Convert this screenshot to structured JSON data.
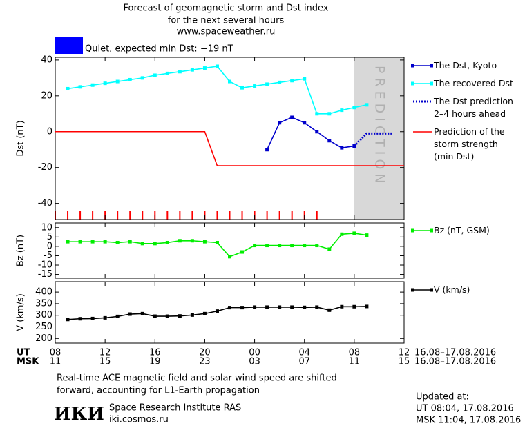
{
  "header": {
    "title_lines": [
      "Forecast of geomagnetic storm and Dst index",
      "for the next several hours",
      "www.spaceweather.ru"
    ],
    "status": "Quiet, expected min Dst: −19 nT",
    "status_color": "#0000ff"
  },
  "chart_data": [
    {
      "type": "line",
      "y_label": "Dst (nT)",
      "xlim": [
        0,
        28
      ],
      "ylim": [
        -49,
        41.5
      ],
      "yticks": [
        -40,
        -20,
        0,
        20,
        40
      ],
      "prediction_label": "PREDICTION",
      "prediction_start": 24,
      "series": [
        {
          "name": "The Dst, Kyoto",
          "color": "#0000cc",
          "marker": true,
          "x": [
            17,
            18,
            19,
            20,
            21,
            22,
            23,
            24
          ],
          "values": [
            -10,
            5,
            8,
            5,
            0,
            -5,
            -9,
            -8
          ]
        },
        {
          "name": "The recovered Dst",
          "color": "#00ffff",
          "marker": true,
          "x": [
            1,
            2,
            3,
            4,
            5,
            6,
            7,
            8,
            9,
            10,
            11,
            12,
            13,
            14,
            15,
            16,
            17,
            18,
            19,
            20,
            21,
            22,
            23,
            24,
            25
          ],
          "values": [
            24,
            25,
            26,
            27,
            28,
            29,
            30,
            31.5,
            32.5,
            33.5,
            34.5,
            35.5,
            36.5,
            28,
            24.5,
            25.5,
            26.5,
            27.5,
            28.5,
            29.5,
            10,
            10,
            12,
            13.5,
            15
          ]
        },
        {
          "name": "The Dst prediction\n2–4 hours ahead",
          "color": "#0000cc",
          "marker": false,
          "dotted": true,
          "x": [
            24,
            25,
            26,
            27
          ],
          "values": [
            -8,
            -1,
            -1,
            -1
          ]
        },
        {
          "name": "Prediction of the\nstorm strength\n(min Dst)",
          "color": "#ff0000",
          "marker": false,
          "x": [
            0,
            12,
            13,
            28
          ],
          "values": [
            0,
            0,
            -19,
            -19
          ]
        }
      ]
    },
    {
      "type": "line",
      "y_label": "Bz (nT)",
      "xlim": [
        0,
        28
      ],
      "ylim": [
        -17,
        12.5
      ],
      "yticks": [
        -15,
        -10,
        -5,
        0,
        5,
        10
      ],
      "series": [
        {
          "name": "Bz (nT, GSM)",
          "color": "#00ee00",
          "marker": true,
          "x": [
            1,
            2,
            3,
            4,
            5,
            6,
            7,
            8,
            9,
            10,
            11,
            12,
            13,
            14,
            15,
            16,
            17,
            18,
            19,
            20,
            21,
            22,
            23,
            24,
            25
          ],
          "values": [
            2.5,
            2.5,
            2.5,
            2.5,
            2,
            2.5,
            1.5,
            1.5,
            2,
            3,
            3,
            2.5,
            2,
            -5.5,
            -3,
            0.5,
            0.5,
            0.5,
            0.5,
            0.5,
            0.5,
            -1.5,
            6.5,
            7,
            6
          ]
        }
      ]
    },
    {
      "type": "line",
      "y_label": "V (km/s)",
      "xlim": [
        0,
        28
      ],
      "ylim": [
        180,
        445
      ],
      "yticks": [
        200,
        250,
        300,
        350,
        400
      ],
      "series": [
        {
          "name": "V (km/s)",
          "color": "#000000",
          "marker": true,
          "x": [
            1,
            2,
            3,
            4,
            5,
            6,
            7,
            8,
            9,
            10,
            11,
            12,
            13,
            14,
            15,
            16,
            17,
            18,
            19,
            20,
            21,
            22,
            23,
            24,
            25
          ],
          "values": [
            282,
            285,
            286,
            289,
            295,
            305,
            307,
            296,
            296,
            297,
            301,
            307,
            318,
            333,
            333,
            335,
            335,
            335,
            335,
            334,
            335,
            322,
            337,
            337,
            338
          ]
        }
      ],
      "x_row_label": "UT",
      "xticks": [
        {
          "value": 0,
          "label": "08"
        },
        {
          "value": 4,
          "label": "12"
        },
        {
          "value": 8,
          "label": "16"
        },
        {
          "value": 12,
          "label": "20"
        },
        {
          "value": 16,
          "label": "00"
        },
        {
          "value": 20,
          "label": "04"
        },
        {
          "value": 24,
          "label": "08"
        },
        {
          "value": 28,
          "label": "12"
        }
      ],
      "x_row2_label": "MSK",
      "xticks2": [
        {
          "value": 0,
          "label": "11"
        },
        {
          "value": 4,
          "label": "15"
        },
        {
          "value": 8,
          "label": "19"
        },
        {
          "value": 12,
          "label": "23"
        },
        {
          "value": 16,
          "label": "03"
        },
        {
          "value": 20,
          "label": "07"
        },
        {
          "value": 24,
          "label": "11"
        },
        {
          "value": 28,
          "label": "15"
        }
      ],
      "date_range": "16.08–17.08.2016"
    }
  ],
  "footer": {
    "note_lines": [
      "Real-time ACE magnetic field and solar wind speed are shifted",
      "forward, accounting for L1-Earth propagation"
    ],
    "logo": "ИКИ",
    "institute": "Space Research Institute RAS",
    "site": "iki.cosmos.ru",
    "updated_lines": [
      "Updated at:",
      "UT  08:04, 17.08.2016",
      "MSK 11:04, 17.08.2016"
    ]
  }
}
